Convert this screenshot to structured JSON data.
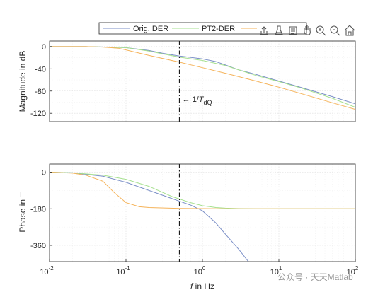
{
  "chart_data": [
    {
      "type": "line",
      "name": "magnitude",
      "xscale": "log",
      "xlim": [
        0.01,
        100
      ],
      "ylim": [
        -135,
        10
      ],
      "ylabel": "Magnitude in dB",
      "yticks": [
        0,
        -40,
        -80,
        -120
      ],
      "ytick_labels": [
        "0",
        "-40",
        "-80",
        "-120"
      ],
      "grid": true,
      "series": [
        {
          "name": "Orig. DER",
          "color": "#7b8fc7",
          "x": [
            0.01,
            0.03,
            0.1,
            0.2,
            0.3,
            0.5,
            1,
            1.5,
            2,
            3,
            5,
            10,
            20,
            50,
            100
          ],
          "values": [
            0,
            0,
            -2,
            -7,
            -12,
            -17,
            -22,
            -27,
            -33,
            -42,
            -50,
            -62,
            -74,
            -90,
            -103
          ]
        },
        {
          "name": "PT2-DER",
          "color": "#a6e08f",
          "x": [
            0.01,
            0.03,
            0.1,
            0.2,
            0.3,
            0.5,
            1,
            2,
            3,
            5,
            10,
            20,
            50,
            100
          ],
          "values": [
            0,
            0,
            -2,
            -8,
            -13,
            -19,
            -25,
            -34,
            -42,
            -52,
            -63,
            -75,
            -93,
            -109
          ]
        },
        {
          "name": "",
          "color": "#f5b35a",
          "x": [
            0.01,
            0.03,
            0.05,
            0.08,
            0.1,
            0.2,
            0.5,
            1,
            2,
            5,
            10,
            20,
            50,
            100
          ],
          "values": [
            0,
            0,
            -1,
            -3,
            -6,
            -16,
            -28,
            -38,
            -48,
            -62,
            -73,
            -85,
            -101,
            -113
          ]
        }
      ],
      "annotations": [
        {
          "text": "← 1/",
          "var": "T",
          "sub": "dQ",
          "x": 0.5,
          "y": -92
        }
      ],
      "vline": {
        "x": 0.5,
        "style": "dash-dot"
      }
    },
    {
      "type": "line",
      "name": "phase",
      "xscale": "log",
      "xlim": [
        0.01,
        100
      ],
      "ylim": [
        -440,
        40
      ],
      "xlabel_var": "f",
      "xlabel_rest": " in Hz",
      "ylabel": "Phase in □",
      "yticks": [
        0,
        -180,
        -360
      ],
      "ytick_labels": [
        "0",
        "-180",
        "-360"
      ],
      "xticks": [
        0.01,
        0.1,
        1,
        10,
        100
      ],
      "xtick_labels": [
        {
          "base": "10",
          "exp": "-2"
        },
        {
          "base": "10",
          "exp": "-1"
        },
        {
          "base": "10",
          "exp": "0"
        },
        {
          "base": "10",
          "exp": "1"
        },
        {
          "base": "10",
          "exp": "2"
        }
      ],
      "grid": true,
      "series": [
        {
          "name": "Orig. DER",
          "color": "#7b8fc7",
          "x": [
            0.01,
            0.02,
            0.05,
            0.1,
            0.2,
            0.4,
            0.7,
            1,
            1.5,
            2,
            3,
            4
          ],
          "values": [
            0,
            -3,
            -20,
            -50,
            -90,
            -130,
            -162,
            -190,
            -250,
            -305,
            -380,
            -440
          ]
        },
        {
          "name": "PT2-DER",
          "color": "#a6e08f",
          "x": [
            0.01,
            0.02,
            0.05,
            0.1,
            0.2,
            0.4,
            0.7,
            1,
            1.5,
            2,
            3,
            5,
            10,
            20,
            50,
            100
          ],
          "values": [
            0,
            -3,
            -15,
            -35,
            -70,
            -120,
            -150,
            -165,
            -174,
            -177,
            -179,
            -180,
            -180,
            -180,
            -180,
            -180
          ]
        },
        {
          "name": "",
          "color": "#f5b35a",
          "x": [
            0.01,
            0.02,
            0.03,
            0.05,
            0.07,
            0.1,
            0.15,
            0.2,
            0.5,
            1,
            2,
            5,
            10,
            100
          ],
          "values": [
            0,
            -5,
            -15,
            -45,
            -100,
            -150,
            -170,
            -174,
            -178,
            -179,
            -180,
            -180,
            -180,
            -180
          ]
        }
      ],
      "vline": {
        "x": 0.5,
        "style": "dash-dot"
      }
    }
  ],
  "legend": {
    "entries": [
      {
        "label": "Orig. DER",
        "color": "#7b8fc7"
      },
      {
        "label": "PT2-DER",
        "color": "#a6e08f"
      },
      {
        "label": "",
        "color": "#f5b35a"
      }
    ],
    "placement": "top-center"
  },
  "toolbar": [
    "export-icon",
    "brush-icon",
    "datatip-icon",
    "pan-icon",
    "zoom-in-icon",
    "zoom-out-icon",
    "home-icon"
  ],
  "watermark": "公众号 · 天天Matlab"
}
